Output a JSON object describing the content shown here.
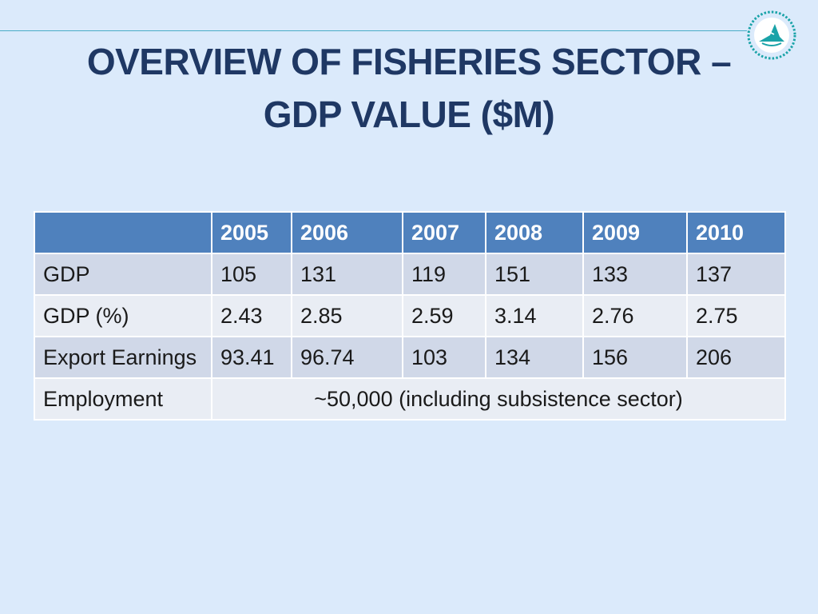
{
  "title": {
    "line1": "OVERVIEW OF FISHERIES SECTOR –",
    "line2": "GDP VALUE ($M)"
  },
  "logo": {
    "icon": "fish-emblem-icon",
    "color": "#1aa3a8"
  },
  "colors": {
    "background": "#dbeafb",
    "header_fill": "#4f81bd",
    "row_fill_dark": "#d0d8e8",
    "row_fill_light": "#e9edf4",
    "title": "#1f3864"
  },
  "chart_data": {
    "type": "table",
    "columns": [
      "",
      "2005",
      "2006",
      "2007",
      "2008",
      "2009",
      "2010"
    ],
    "rows": [
      {
        "label": "GDP",
        "values": [
          "105",
          "131",
          "119",
          "151",
          "133",
          "137"
        ]
      },
      {
        "label": "GDP (%)",
        "values": [
          "2.43",
          "2.85",
          "2.59",
          "3.14",
          "2.76",
          "2.75"
        ]
      },
      {
        "label": "Export Earnings",
        "values": [
          "93.41",
          "96.74",
          "103",
          "134",
          "156",
          "206"
        ]
      },
      {
        "label": "Employment",
        "merged_value": "~50,000  (including subsistence sector)"
      }
    ]
  }
}
